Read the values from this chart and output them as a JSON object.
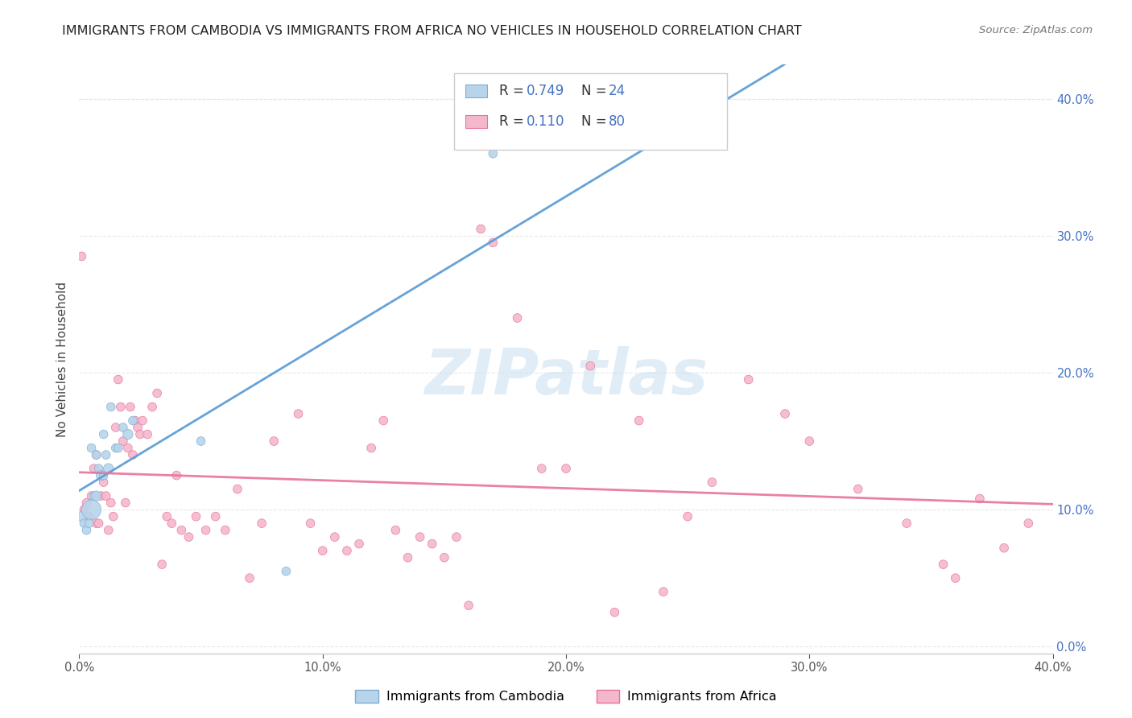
{
  "title": "IMMIGRANTS FROM CAMBODIA VS IMMIGRANTS FROM AFRICA NO VEHICLES IN HOUSEHOLD CORRELATION CHART",
  "source": "Source: ZipAtlas.com",
  "ylabel": "No Vehicles in Household",
  "xlim": [
    0.0,
    0.4
  ],
  "ylim": [
    -0.005,
    0.425
  ],
  "background_color": "#ffffff",
  "watermark_text": "ZIPatlas",
  "grid_color": "#e8e8e8",
  "value_color": "#4472c4",
  "title_fontsize": 11.5,
  "label_fontsize": 11,
  "tick_fontsize": 10.5,
  "cambodia": {
    "name": "Immigrants from Cambodia",
    "color": "#b8d4ea",
    "edge_color": "#7bafd4",
    "trend_color": "#5b9bd5",
    "R": "0.749",
    "N": "24",
    "x": [
      0.001,
      0.002,
      0.003,
      0.004,
      0.005,
      0.005,
      0.006,
      0.007,
      0.007,
      0.008,
      0.009,
      0.01,
      0.01,
      0.011,
      0.012,
      0.013,
      0.015,
      0.016,
      0.018,
      0.02,
      0.022,
      0.05,
      0.085,
      0.17
    ],
    "y": [
      0.095,
      0.09,
      0.085,
      0.09,
      0.1,
      0.145,
      0.11,
      0.11,
      0.14,
      0.13,
      0.125,
      0.125,
      0.155,
      0.14,
      0.13,
      0.175,
      0.145,
      0.145,
      0.16,
      0.155,
      0.165,
      0.15,
      0.055,
      0.36
    ],
    "sizes": [
      80,
      60,
      60,
      60,
      300,
      60,
      60,
      80,
      60,
      60,
      80,
      60,
      60,
      60,
      80,
      60,
      60,
      60,
      60,
      80,
      60,
      60,
      60,
      60
    ]
  },
  "africa": {
    "name": "Immigrants from Africa",
    "color": "#f4b8cc",
    "edge_color": "#e8729a",
    "trend_color": "#e8729a",
    "R": "0.110",
    "N": "80",
    "x": [
      0.001,
      0.002,
      0.003,
      0.004,
      0.005,
      0.006,
      0.007,
      0.007,
      0.008,
      0.009,
      0.01,
      0.011,
      0.012,
      0.013,
      0.014,
      0.015,
      0.016,
      0.017,
      0.018,
      0.019,
      0.02,
      0.021,
      0.022,
      0.023,
      0.024,
      0.025,
      0.026,
      0.028,
      0.03,
      0.032,
      0.034,
      0.036,
      0.038,
      0.04,
      0.042,
      0.045,
      0.048,
      0.052,
      0.056,
      0.06,
      0.065,
      0.07,
      0.075,
      0.08,
      0.09,
      0.095,
      0.1,
      0.105,
      0.11,
      0.115,
      0.12,
      0.125,
      0.13,
      0.135,
      0.14,
      0.145,
      0.15,
      0.155,
      0.16,
      0.165,
      0.17,
      0.18,
      0.19,
      0.2,
      0.21,
      0.22,
      0.23,
      0.24,
      0.26,
      0.275,
      0.3,
      0.32,
      0.34,
      0.355,
      0.36,
      0.37,
      0.38,
      0.39,
      0.29,
      0.25
    ],
    "y": [
      0.285,
      0.1,
      0.105,
      0.095,
      0.11,
      0.13,
      0.14,
      0.09,
      0.09,
      0.11,
      0.12,
      0.11,
      0.085,
      0.105,
      0.095,
      0.16,
      0.195,
      0.175,
      0.15,
      0.105,
      0.145,
      0.175,
      0.14,
      0.165,
      0.16,
      0.155,
      0.165,
      0.155,
      0.175,
      0.185,
      0.06,
      0.095,
      0.09,
      0.125,
      0.085,
      0.08,
      0.095,
      0.085,
      0.095,
      0.085,
      0.115,
      0.05,
      0.09,
      0.15,
      0.17,
      0.09,
      0.07,
      0.08,
      0.07,
      0.075,
      0.145,
      0.165,
      0.085,
      0.065,
      0.08,
      0.075,
      0.065,
      0.08,
      0.03,
      0.305,
      0.295,
      0.24,
      0.13,
      0.13,
      0.205,
      0.025,
      0.165,
      0.04,
      0.12,
      0.195,
      0.15,
      0.115,
      0.09,
      0.06,
      0.05,
      0.108,
      0.072,
      0.09,
      0.17,
      0.095
    ],
    "sizes": [
      60,
      60,
      60,
      60,
      60,
      60,
      60,
      60,
      60,
      60,
      60,
      60,
      60,
      60,
      60,
      60,
      60,
      60,
      60,
      60,
      60,
      60,
      60,
      60,
      60,
      60,
      60,
      60,
      60,
      60,
      60,
      60,
      60,
      60,
      60,
      60,
      60,
      60,
      60,
      60,
      60,
      60,
      60,
      60,
      60,
      60,
      60,
      60,
      60,
      60,
      60,
      60,
      60,
      60,
      60,
      60,
      60,
      60,
      60,
      60,
      60,
      60,
      60,
      60,
      60,
      60,
      60,
      60,
      60,
      60,
      60,
      60,
      60,
      60,
      60,
      60,
      60,
      60,
      60,
      60
    ]
  }
}
